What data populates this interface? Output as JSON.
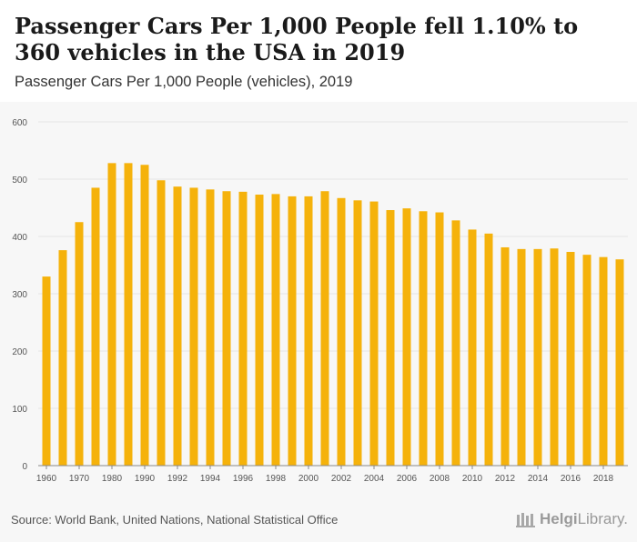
{
  "header": {
    "title": "Passenger Cars Per 1,000 People fell 1.10% to 360 vehicles in the USA in 2019",
    "subtitle": "Passenger Cars Per 1,000 People (vehicles), 2019"
  },
  "footer": {
    "source": "Source: World Bank, United Nations, National Statistical Office",
    "brand_bold": "Helgi",
    "brand_light": "Library."
  },
  "colors": {
    "bar": "#f5b20b",
    "grid": "#e4e4e4",
    "axis": "#888888",
    "tick_text": "#555555"
  },
  "chart_data": {
    "type": "bar",
    "title": "Passenger Cars Per 1,000 People fell 1.10% to 360 vehicles in the USA in 2019",
    "subtitle": "Passenger Cars Per 1,000 People (vehicles), 2019",
    "xlabel": "",
    "ylabel": "",
    "ylim": [
      0,
      600
    ],
    "yticks": [
      0,
      100,
      200,
      300,
      400,
      500,
      600
    ],
    "xtick_labels": [
      "1960",
      "1970",
      "1980",
      "1990",
      "1992",
      "1994",
      "1996",
      "1998",
      "2000",
      "2002",
      "2004",
      "2006",
      "2008",
      "2010",
      "2012",
      "2014",
      "2016",
      "2018"
    ],
    "categories": [
      "1960",
      "1965",
      "1970",
      "1975",
      "1980",
      "1985",
      "1990",
      "1991",
      "1992",
      "1993",
      "1994",
      "1995",
      "1996",
      "1997",
      "1998",
      "1999",
      "2000",
      "2001",
      "2002",
      "2003",
      "2004",
      "2005",
      "2006",
      "2007",
      "2008",
      "2009",
      "2010",
      "2011",
      "2012",
      "2013",
      "2014",
      "2015",
      "2016",
      "2017",
      "2018",
      "2019"
    ],
    "values": [
      330,
      376,
      425,
      485,
      528,
      528,
      525,
      498,
      487,
      485,
      482,
      479,
      478,
      473,
      474,
      470,
      470,
      479,
      467,
      463,
      461,
      446,
      449,
      444,
      442,
      428,
      412,
      405,
      381,
      378,
      378,
      379,
      373,
      368,
      364,
      360
    ]
  }
}
